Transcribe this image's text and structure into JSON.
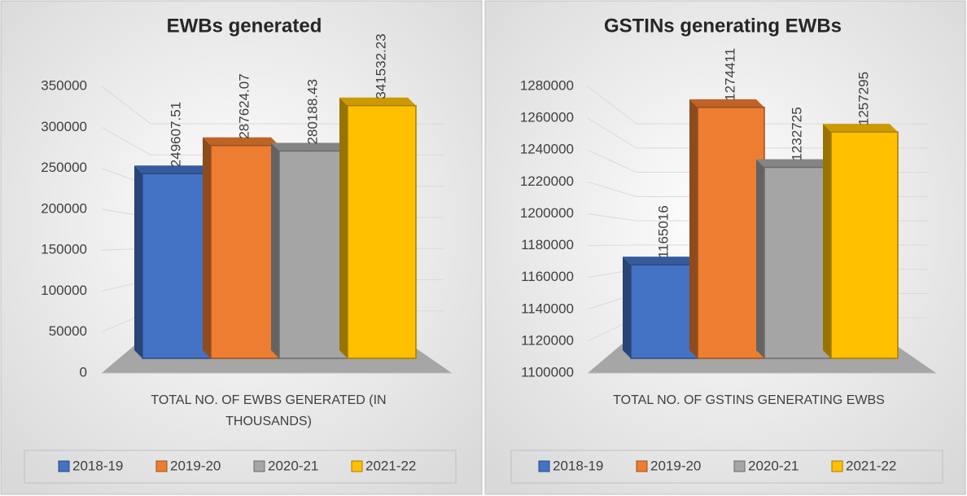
{
  "chart_data": [
    {
      "type": "bar",
      "title": "EWBs generated",
      "categories": [
        "TOTAL NO. OF EWBS GENERATED (IN THOUSANDS)"
      ],
      "series": [
        {
          "name": "2018-19",
          "color": "#4472c4",
          "values": [
            249607.51
          ]
        },
        {
          "name": "2019-20",
          "color": "#ed7d31",
          "values": [
            287624.07
          ]
        },
        {
          "name": "2020-21",
          "color": "#a5a5a5",
          "values": [
            280188.43
          ]
        },
        {
          "name": "2021-22",
          "color": "#ffc000",
          "values": [
            341532.23
          ]
        }
      ],
      "ylim": [
        0,
        350000
      ],
      "yticks": [
        0,
        50000,
        100000,
        150000,
        200000,
        250000,
        300000,
        350000
      ],
      "grid": true,
      "legend": "bottom"
    },
    {
      "type": "bar",
      "title": "GSTINs generating EWBs",
      "categories": [
        "TOTAL NO. OF GSTINS GENERATING EWBS"
      ],
      "series": [
        {
          "name": "2018-19",
          "color": "#4472c4",
          "values": [
            1165016
          ]
        },
        {
          "name": "2019-20",
          "color": "#ed7d31",
          "values": [
            1274411
          ]
        },
        {
          "name": "2020-21",
          "color": "#a5a5a5",
          "values": [
            1232725
          ]
        },
        {
          "name": "2021-22",
          "color": "#ffc000",
          "values": [
            1257295
          ]
        }
      ],
      "ylim": [
        1100000,
        1280000
      ],
      "yticks": [
        1100000,
        1120000,
        1140000,
        1160000,
        1180000,
        1200000,
        1220000,
        1240000,
        1260000,
        1280000
      ],
      "grid": true,
      "legend": "bottom"
    }
  ]
}
